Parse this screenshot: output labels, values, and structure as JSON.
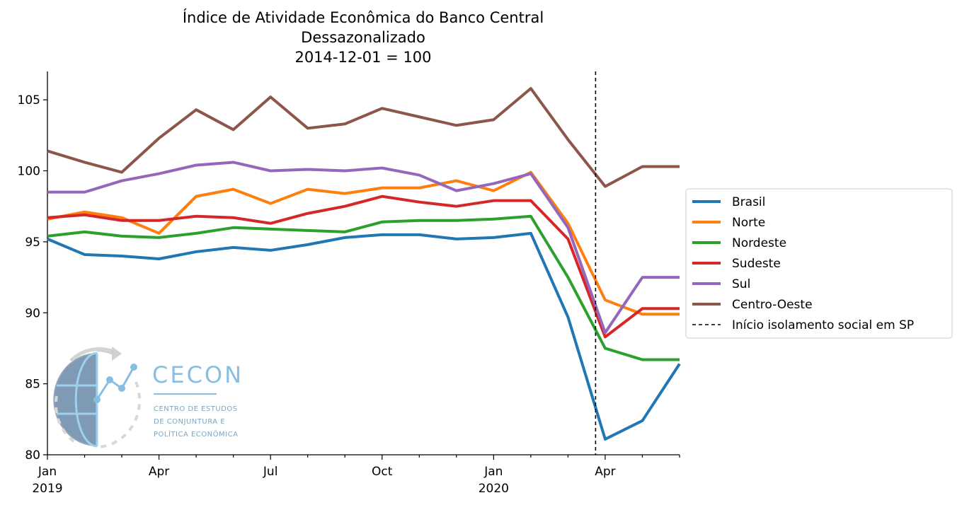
{
  "chart_data": {
    "type": "line",
    "title_lines": [
      "Índice de Atividade Econômica do Banco Central",
      "Dessazonalizado",
      "2014-12-01 = 100"
    ],
    "x": [
      "2019-01",
      "2019-02",
      "2019-03",
      "2019-04",
      "2019-05",
      "2019-06",
      "2019-07",
      "2019-08",
      "2019-09",
      "2019-10",
      "2019-11",
      "2019-12",
      "2020-01",
      "2020-02",
      "2020-03",
      "2020-04",
      "2020-05",
      "2020-06"
    ],
    "x_tick_labels": [
      {
        "month": "2019-01",
        "label": "Jan",
        "year": "2019"
      },
      {
        "month": "2019-04",
        "label": "Apr",
        "year": ""
      },
      {
        "month": "2019-07",
        "label": "Jul",
        "year": ""
      },
      {
        "month": "2019-10",
        "label": "Oct",
        "year": ""
      },
      {
        "month": "2020-01",
        "label": "Jan",
        "year": "2020"
      },
      {
        "month": "2020-04",
        "label": "Apr",
        "year": ""
      }
    ],
    "ylim": [
      80,
      107
    ],
    "y_ticks": [
      80,
      85,
      90,
      95,
      100,
      105
    ],
    "series": [
      {
        "name": "Brasil",
        "color": "#1f77b4",
        "values": [
          95.2,
          94.1,
          94.0,
          93.8,
          94.3,
          94.6,
          94.4,
          94.8,
          95.3,
          95.5,
          95.5,
          95.2,
          95.3,
          95.6,
          89.7,
          81.1,
          82.4,
          86.4
        ]
      },
      {
        "name": "Norte",
        "color": "#ff7f0e",
        "values": [
          96.6,
          97.1,
          96.7,
          95.6,
          98.2,
          98.7,
          97.7,
          98.7,
          98.4,
          98.8,
          98.8,
          99.3,
          98.6,
          99.9,
          96.3,
          90.9,
          89.9,
          89.9
        ]
      },
      {
        "name": "Nordeste",
        "color": "#2ca02c",
        "values": [
          95.4,
          95.7,
          95.4,
          95.3,
          95.6,
          96.0,
          95.9,
          95.8,
          95.7,
          96.4,
          96.5,
          96.5,
          96.6,
          96.8,
          92.5,
          87.5,
          86.7,
          86.7
        ]
      },
      {
        "name": "Sudeste",
        "color": "#d62728",
        "values": [
          96.7,
          96.9,
          96.5,
          96.5,
          96.8,
          96.7,
          96.3,
          97.0,
          97.5,
          98.2,
          97.8,
          97.5,
          97.9,
          97.9,
          95.2,
          88.3,
          90.3,
          90.3
        ]
      },
      {
        "name": "Sul",
        "color": "#9467bd",
        "values": [
          98.5,
          98.5,
          99.3,
          99.8,
          100.4,
          100.6,
          100.0,
          100.1,
          100.0,
          100.2,
          99.7,
          98.6,
          99.1,
          99.8,
          96.0,
          88.6,
          92.5,
          92.5
        ]
      },
      {
        "name": "Centro-Oeste",
        "color": "#8c564b",
        "values": [
          101.4,
          100.6,
          99.9,
          102.3,
          104.3,
          102.9,
          105.2,
          103.0,
          103.3,
          104.4,
          103.8,
          103.2,
          103.6,
          105.8,
          102.2,
          98.9,
          100.3,
          100.3
        ]
      }
    ],
    "vline": {
      "label": "Início isolamento social em SP",
      "x": "2020-03-24",
      "color": "#000000",
      "style": "dashed"
    },
    "legend_position": "center-right, outside plot",
    "grid": false
  },
  "logo": {
    "name": "CECON",
    "subtitle_lines": [
      "CENTRO DE ESTUDOS",
      "DE CONJUNTURA E",
      "POLÍTICA ECONÔMICA"
    ]
  }
}
